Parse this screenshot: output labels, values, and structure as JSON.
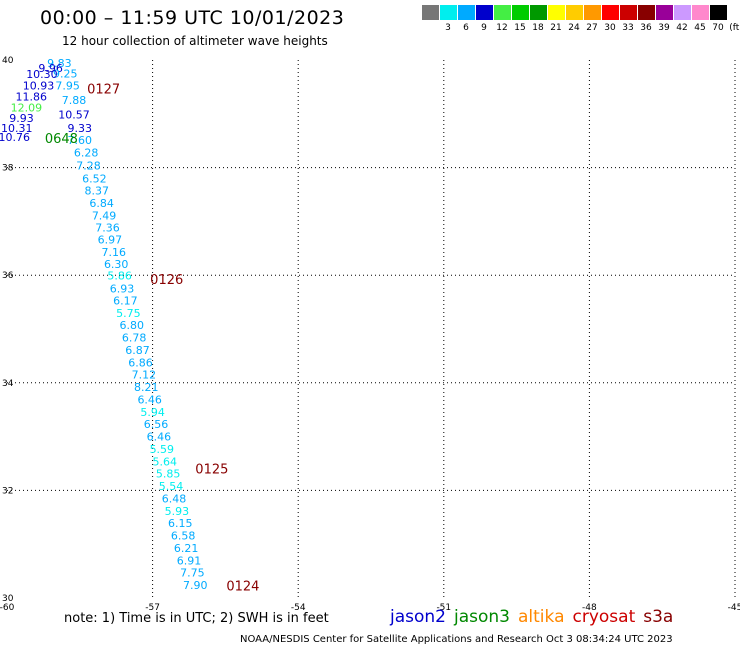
{
  "header": {
    "title": "00:00 – 11:59 UTC 10/01/2023",
    "subtitle": "12 hour collection of altimeter wave heights"
  },
  "footer": {
    "note": "note:  1) Time is in UTC;  2) SWH is in feet",
    "credit": "NOAA/NESDIS Center for Satellite Applications and Research    Oct  3 08:34:24 UTC 2023"
  },
  "satellites": [
    {
      "name": "jason2",
      "color": "#0000cc"
    },
    {
      "name": "jason3",
      "color": "#008800"
    },
    {
      "name": "altika",
      "color": "#ff8800"
    },
    {
      "name": "cryosat",
      "color": "#cc0000"
    },
    {
      "name": "s3a",
      "color": "#880000"
    }
  ],
  "legend": {
    "unit": "(ft)",
    "bins": [
      {
        "label": "",
        "color": "#777777"
      },
      {
        "label": "3",
        "color": "#00eeee"
      },
      {
        "label": "6",
        "color": "#00aaff"
      },
      {
        "label": "9",
        "color": "#0000cc"
      },
      {
        "label": "12",
        "color": "#44ee44"
      },
      {
        "label": "15",
        "color": "#00cc00"
      },
      {
        "label": "18",
        "color": "#009900"
      },
      {
        "label": "21",
        "color": "#ffff00"
      },
      {
        "label": "24",
        "color": "#ffcc00"
      },
      {
        "label": "27",
        "color": "#ff9900"
      },
      {
        "label": "30",
        "color": "#ff0000"
      },
      {
        "label": "33",
        "color": "#cc0000"
      },
      {
        "label": "36",
        "color": "#880000"
      },
      {
        "label": "39",
        "color": "#990099"
      },
      {
        "label": "42",
        "color": "#cc99ff"
      },
      {
        "label": "45",
        "color": "#ff88cc"
      },
      {
        "label": "70",
        "color": "#000000"
      }
    ]
  },
  "chart_data": {
    "type": "scatter",
    "xlabel": "",
    "ylabel": "",
    "xlim": [
      -60,
      -45
    ],
    "ylim": [
      30,
      40
    ],
    "x_ticks": [
      "-60",
      "-57",
      "-54",
      "-51",
      "-48",
      "-45"
    ],
    "y_ticks": [
      "30",
      "32",
      "34",
      "36",
      "38",
      "40"
    ],
    "grid": true,
    "points": [
      {
        "lon": -58.92,
        "lat": 39.94,
        "value": "9.83",
        "color": "#00aaff"
      },
      {
        "lon": -59.1,
        "lat": 39.85,
        "value": "9.96",
        "color": "#0000cc"
      },
      {
        "lon": -58.8,
        "lat": 39.75,
        "value": "9.25",
        "color": "#00aaff"
      },
      {
        "lon": -59.28,
        "lat": 39.74,
        "value": "10.30",
        "color": "#0000cc"
      },
      {
        "lon": -59.35,
        "lat": 39.53,
        "value": "10.93",
        "color": "#0000cc"
      },
      {
        "lon": -58.75,
        "lat": 39.53,
        "value": "7.95",
        "color": "#00aaff"
      },
      {
        "lon": -59.5,
        "lat": 39.32,
        "value": "11.86",
        "color": "#0000cc"
      },
      {
        "lon": -58.62,
        "lat": 39.26,
        "value": "7.88",
        "color": "#00aaff"
      },
      {
        "lon": -59.6,
        "lat": 39.12,
        "value": "12.09",
        "color": "#44ee44"
      },
      {
        "lon": -58.62,
        "lat": 38.99,
        "value": "10.57",
        "color": "#0000cc"
      },
      {
        "lon": -59.7,
        "lat": 38.92,
        "value": "9.93",
        "color": "#0000cc"
      },
      {
        "lon": -59.8,
        "lat": 38.74,
        "value": "10.31",
        "color": "#0000cc"
      },
      {
        "lon": -58.5,
        "lat": 38.74,
        "value": "9.33",
        "color": "#0000cc"
      },
      {
        "lon": -59.85,
        "lat": 38.57,
        "value": "10.76",
        "color": "#0000cc"
      },
      {
        "lon": -58.5,
        "lat": 38.51,
        "value": "7.60",
        "color": "#00aaff"
      },
      {
        "lon": -58.37,
        "lat": 38.28,
        "value": "6.28",
        "color": "#00aaff"
      },
      {
        "lon": -58.32,
        "lat": 38.04,
        "value": "7.28",
        "color": "#00aaff"
      },
      {
        "lon": -58.2,
        "lat": 37.8,
        "value": "6.52",
        "color": "#00aaff"
      },
      {
        "lon": -58.15,
        "lat": 37.57,
        "value": "8.37",
        "color": "#00aaff"
      },
      {
        "lon": -58.05,
        "lat": 37.34,
        "value": "6.84",
        "color": "#00aaff"
      },
      {
        "lon": -58.0,
        "lat": 37.11,
        "value": "7.49",
        "color": "#00aaff"
      },
      {
        "lon": -57.93,
        "lat": 36.89,
        "value": "7.36",
        "color": "#00aaff"
      },
      {
        "lon": -57.88,
        "lat": 36.66,
        "value": "6.97",
        "color": "#00aaff"
      },
      {
        "lon": -57.8,
        "lat": 36.43,
        "value": "7.16",
        "color": "#00aaff"
      },
      {
        "lon": -57.75,
        "lat": 36.21,
        "value": "6.30",
        "color": "#00aaff"
      },
      {
        "lon": -57.68,
        "lat": 35.99,
        "value": "5.86",
        "color": "#00eeee"
      },
      {
        "lon": -57.63,
        "lat": 35.75,
        "value": "6.93",
        "color": "#00aaff"
      },
      {
        "lon": -57.56,
        "lat": 35.53,
        "value": "6.17",
        "color": "#00aaff"
      },
      {
        "lon": -57.5,
        "lat": 35.3,
        "value": "5.75",
        "color": "#00eeee"
      },
      {
        "lon": -57.43,
        "lat": 35.07,
        "value": "6.80",
        "color": "#00aaff"
      },
      {
        "lon": -57.38,
        "lat": 34.84,
        "value": "6.78",
        "color": "#00aaff"
      },
      {
        "lon": -57.31,
        "lat": 34.61,
        "value": "6.87",
        "color": "#00aaff"
      },
      {
        "lon": -57.25,
        "lat": 34.38,
        "value": "6.86",
        "color": "#00aaff"
      },
      {
        "lon": -57.18,
        "lat": 34.15,
        "value": "7.12",
        "color": "#00aaff"
      },
      {
        "lon": -57.13,
        "lat": 33.92,
        "value": "8.21",
        "color": "#00aaff"
      },
      {
        "lon": -57.06,
        "lat": 33.69,
        "value": "6.46",
        "color": "#00aaff"
      },
      {
        "lon": -57.0,
        "lat": 33.46,
        "value": "5.94",
        "color": "#00eeee"
      },
      {
        "lon": -56.93,
        "lat": 33.23,
        "value": "6.56",
        "color": "#00aaff"
      },
      {
        "lon": -56.87,
        "lat": 33.0,
        "value": "6.46",
        "color": "#00aaff"
      },
      {
        "lon": -56.81,
        "lat": 32.77,
        "value": "5.59",
        "color": "#00eeee"
      },
      {
        "lon": -56.75,
        "lat": 32.54,
        "value": "5.64",
        "color": "#00eeee"
      },
      {
        "lon": -56.68,
        "lat": 32.31,
        "value": "5.85",
        "color": "#00eeee"
      },
      {
        "lon": -56.62,
        "lat": 32.08,
        "value": "5.54",
        "color": "#00eeee"
      },
      {
        "lon": -56.56,
        "lat": 31.85,
        "value": "6.48",
        "color": "#00aaff"
      },
      {
        "lon": -56.5,
        "lat": 31.62,
        "value": "5.93",
        "color": "#00eeee"
      },
      {
        "lon": -56.43,
        "lat": 31.39,
        "value": "6.15",
        "color": "#00aaff"
      },
      {
        "lon": -56.37,
        "lat": 31.16,
        "value": "6.58",
        "color": "#00aaff"
      },
      {
        "lon": -56.31,
        "lat": 30.93,
        "value": "6.21",
        "color": "#00aaff"
      },
      {
        "lon": -56.25,
        "lat": 30.7,
        "value": "6.91",
        "color": "#00aaff"
      },
      {
        "lon": -56.18,
        "lat": 30.47,
        "value": "7.75",
        "color": "#00aaff"
      },
      {
        "lon": -56.12,
        "lat": 30.24,
        "value": "7.90",
        "color": "#00aaff"
      }
    ],
    "time_labels": [
      {
        "lon": -58.35,
        "lat": 39.47,
        "text": "0127",
        "color": "#880000"
      },
      {
        "lon": -59.22,
        "lat": 38.55,
        "text": "0648",
        "color": "#008800"
      },
      {
        "lon": -57.05,
        "lat": 35.93,
        "text": "0126",
        "color": "#880000"
      },
      {
        "lon": -56.12,
        "lat": 32.41,
        "text": "0125",
        "color": "#880000"
      },
      {
        "lon": -55.48,
        "lat": 30.23,
        "text": "0124",
        "color": "#880000"
      }
    ]
  }
}
